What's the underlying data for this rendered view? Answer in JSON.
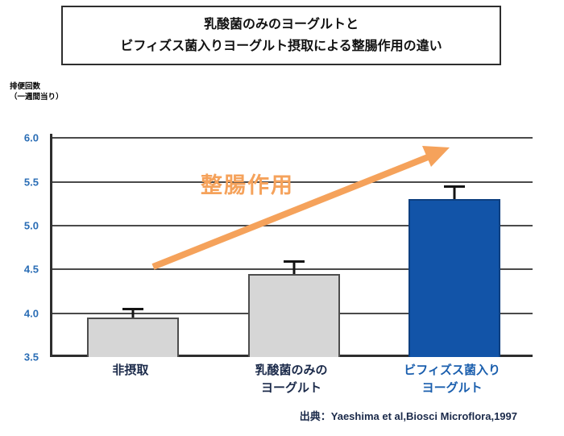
{
  "title": {
    "line1": "乳酸菌のみのヨーグルトと",
    "line2": "ビフィズス菌入りヨーグルト摂取による整腸作用の違い"
  },
  "y_axis_unit": {
    "line1": "排便回数",
    "line2": "（一週間当り）"
  },
  "annotation": {
    "arrow_label": "整腸作用",
    "arrow_color": "#f5a25b"
  },
  "source": "出典：Yaeshima et al,Biosci Microflora,1997",
  "chart_data": {
    "type": "bar",
    "title": "乳酸菌のみのヨーグルトとビフィズス菌入りヨーグルト摂取による整腸作用の違い",
    "categories": [
      "非摂取",
      "乳酸菌のみの\nヨーグルト",
      "ビフィズス菌入り\nヨーグルト"
    ],
    "values": [
      3.95,
      4.45,
      5.3
    ],
    "errors": [
      0.1,
      0.15,
      0.15
    ],
    "ylabel": "排便回数（一週間当り）",
    "ylim": [
      3.5,
      6.05
    ],
    "yticks": [
      3.5,
      4.0,
      4.5,
      5.0,
      5.5,
      6.0
    ],
    "grid": true,
    "legend": false,
    "bar_colors": [
      "#d6d6d6",
      "#d6d6d6",
      "#1254a8"
    ],
    "bar_border_colors": [
      "#4d4d4d",
      "#4d4d4d",
      "#0d3f80"
    ],
    "category_label_colors": [
      "#1b2a4a",
      "#1b2a4a",
      "#1b5fae"
    ],
    "tick_color": "#2a6db5"
  }
}
